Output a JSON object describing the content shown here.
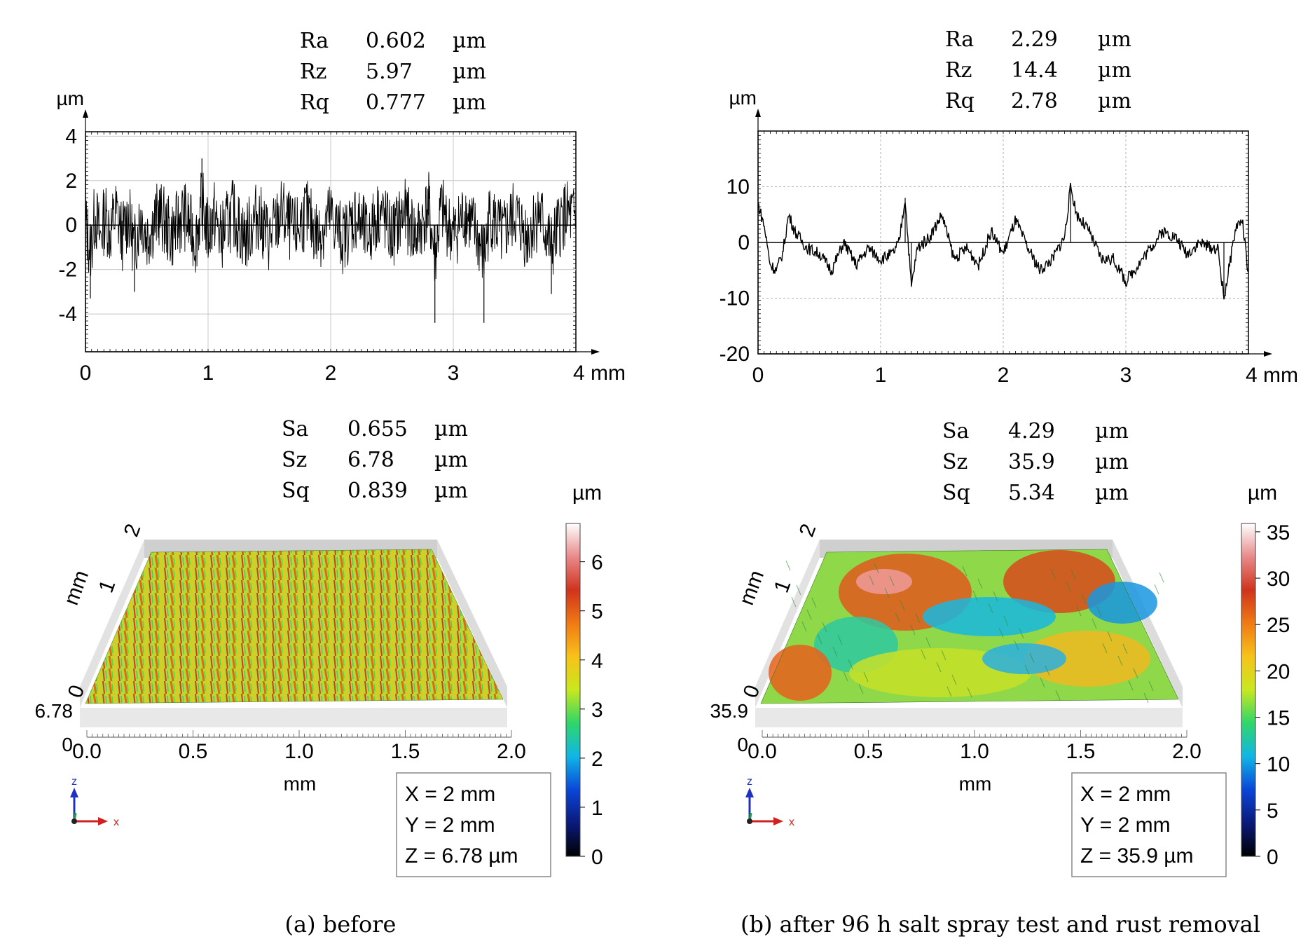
{
  "chart_data": [
    {
      "type": "line",
      "panel": "a",
      "y_unit": "µm",
      "x_unit": "mm",
      "x_ticks": [
        "0",
        "1",
        "2",
        "3",
        "4"
      ],
      "x_unit_tick": "4 mm",
      "y_ticks": [
        "4",
        "2",
        "0",
        "-2",
        "-4"
      ],
      "xlim": [
        0,
        4
      ],
      "ylim": [
        -5.7,
        4.2
      ],
      "grid": true,
      "stats": [
        {
          "name": "Ra",
          "value": "0.602",
          "unit": "µm"
        },
        {
          "name": "Rz",
          "value": "5.97",
          "unit": "µm"
        },
        {
          "name": "Rq",
          "value": "0.777",
          "unit": "µm"
        }
      ],
      "series": [
        {
          "x": [
            0,
            0.04,
            0.08,
            0.12,
            0.16,
            0.2,
            0.25,
            0.3,
            0.35,
            0.4,
            0.45,
            0.5,
            0.6,
            0.7,
            0.8,
            0.9,
            0.95,
            1.0,
            1.05,
            1.1,
            1.2,
            1.3,
            1.4,
            1.5,
            1.6,
            1.7,
            1.8,
            1.9,
            2.0,
            2.1,
            2.2,
            2.3,
            2.4,
            2.5,
            2.6,
            2.7,
            2.8,
            2.85,
            2.9,
            3.0,
            3.1,
            3.2,
            3.25,
            3.3,
            3.4,
            3.5,
            3.6,
            3.7,
            3.8,
            3.9,
            4.0
          ],
          "y": [
            0.2,
            -3.3,
            1.6,
            -1.8,
            1.4,
            -0.9,
            1.7,
            -1.5,
            1.3,
            -3.0,
            1.5,
            -1.4,
            1.6,
            -1.3,
            1.5,
            -1.9,
            3.0,
            -1.2,
            1.4,
            -1.6,
            1.5,
            -1.7,
            1.4,
            -1.8,
            1.6,
            -1.2,
            1.5,
            -1.4,
            1.3,
            -1.8,
            1.2,
            -1.6,
            1.9,
            -1.3,
            1.6,
            -1.5,
            2.3,
            -4.4,
            2.0,
            -1.4,
            1.7,
            -1.8,
            -4.4,
            1.5,
            -1.6,
            1.4,
            -1.5,
            1.6,
            -3.1,
            1.3,
            0.6
          ]
        }
      ]
    },
    {
      "type": "line",
      "panel": "b",
      "y_unit": "µm",
      "x_unit": "mm",
      "x_ticks": [
        "0",
        "1",
        "2",
        "3",
        "4"
      ],
      "x_unit_tick": "4 mm",
      "y_ticks": [
        "10",
        "0",
        "-10",
        "-20"
      ],
      "xlim": [
        0,
        4
      ],
      "ylim": [
        -20,
        20
      ],
      "grid": true,
      "stats": [
        {
          "name": "Ra",
          "value": "2.29",
          "unit": "µm"
        },
        {
          "name": "Rz",
          "value": "14.4",
          "unit": "µm"
        },
        {
          "name": "Rq",
          "value": "2.78",
          "unit": "µm"
        }
      ],
      "series": [
        {
          "x": [
            0,
            0.05,
            0.1,
            0.15,
            0.2,
            0.25,
            0.3,
            0.4,
            0.5,
            0.6,
            0.7,
            0.8,
            0.9,
            1.0,
            1.1,
            1.15,
            1.2,
            1.25,
            1.3,
            1.4,
            1.5,
            1.6,
            1.7,
            1.8,
            1.9,
            2.0,
            2.1,
            2.2,
            2.3,
            2.4,
            2.5,
            2.55,
            2.6,
            2.7,
            2.8,
            2.9,
            3.0,
            3.1,
            3.2,
            3.3,
            3.4,
            3.5,
            3.6,
            3.7,
            3.75,
            3.8,
            3.9,
            3.95,
            4.0
          ],
          "y": [
            7,
            3,
            -4,
            -5,
            -2,
            5,
            2,
            -1,
            -2,
            -5,
            0,
            -4,
            -1,
            -3,
            -2,
            0,
            8,
            -8,
            -1,
            1,
            5,
            -3,
            -1,
            -4,
            2,
            -2,
            4,
            -1,
            -5,
            -3,
            1,
            10,
            5,
            2,
            -3,
            -3,
            -7,
            -4,
            -1,
            2,
            1,
            -2,
            0,
            -1,
            -1,
            -10,
            3,
            4,
            -6
          ]
        }
      ]
    },
    {
      "type": "heatmap",
      "panel": "a",
      "stats": [
        {
          "name": "Sa",
          "value": "0.655",
          "unit": "µm"
        },
        {
          "name": "Sz",
          "value": "6.78",
          "unit": "µm"
        },
        {
          "name": "Sq",
          "value": "0.839",
          "unit": "µm"
        }
      ],
      "x_ticks": [
        "0.0",
        "0.5",
        "1.0",
        "1.5",
        "2.0"
      ],
      "xlabel": "mm",
      "y_ticks": [
        "0",
        "1",
        "2"
      ],
      "ylabel": "mm",
      "z_ticks": [
        "6.78",
        "0"
      ],
      "colorbar_unit": "µm",
      "colorbar_ticks": [
        "6",
        "5",
        "4",
        "3",
        "2",
        "1",
        "0"
      ],
      "zlim": [
        0,
        6.78
      ],
      "colormap": [
        "#000000",
        "#0a1a7a",
        "#0a46d8",
        "#10b6e6",
        "#2fd66a",
        "#c8e81e",
        "#f7c21a",
        "#f07a14",
        "#d0331c",
        "#e88a8a",
        "#ffffff"
      ],
      "info_box": [
        "X = 2 mm",
        "Y = 2 mm",
        "Z = 6.78 µm"
      ],
      "axis_x_label": "x",
      "axis_z_label": "z"
    },
    {
      "type": "heatmap",
      "panel": "b",
      "stats": [
        {
          "name": "Sa",
          "value": "4.29",
          "unit": "µm"
        },
        {
          "name": "Sz",
          "value": "35.9",
          "unit": "µm"
        },
        {
          "name": "Sq",
          "value": "5.34",
          "unit": "µm"
        }
      ],
      "x_ticks": [
        "0.0",
        "0.5",
        "1.0",
        "1.5",
        "2.0"
      ],
      "xlabel": "mm",
      "y_ticks": [
        "0",
        "1",
        "2"
      ],
      "ylabel": "mm",
      "z_ticks": [
        "35.9",
        "0"
      ],
      "colorbar_unit": "µm",
      "colorbar_ticks": [
        "35",
        "30",
        "25",
        "20",
        "15",
        "10",
        "5",
        "0"
      ],
      "zlim": [
        0,
        35.9
      ],
      "colormap": [
        "#000000",
        "#0a1a7a",
        "#0a46d8",
        "#10b6e6",
        "#2fd66a",
        "#c8e81e",
        "#f7c21a",
        "#f07a14",
        "#d0331c",
        "#e88a8a",
        "#ffffff"
      ],
      "info_box": [
        "X = 2 mm",
        "Y = 2 mm",
        "Z = 35.9 µm"
      ],
      "axis_x_label": "x",
      "axis_z_label": "z"
    }
  ],
  "captions": {
    "a": "(a) before",
    "b": "(b) after 96 h salt spray test and rust removal"
  }
}
